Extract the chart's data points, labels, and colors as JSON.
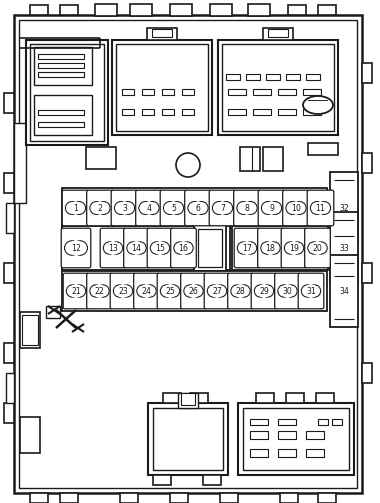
{
  "bg_color": "#ffffff",
  "lc": "#1a1a1a",
  "fig_w": 3.8,
  "fig_h": 5.03,
  "dpi": 100,
  "row1_fuses": [
    "1",
    "2",
    "3",
    "4",
    "5",
    "6",
    "7",
    "8",
    "9",
    "10",
    "11"
  ],
  "row2_fuses_left": [
    "12",
    "13",
    "14",
    "15",
    "16"
  ],
  "row2_fuses_right": [
    "17",
    "18",
    "19",
    "20"
  ],
  "row3_fuses": [
    "21",
    "22",
    "23",
    "24",
    "25",
    "26",
    "27",
    "28",
    "29",
    "30",
    "31"
  ],
  "side_fuses": [
    "32",
    "33",
    "34"
  ]
}
